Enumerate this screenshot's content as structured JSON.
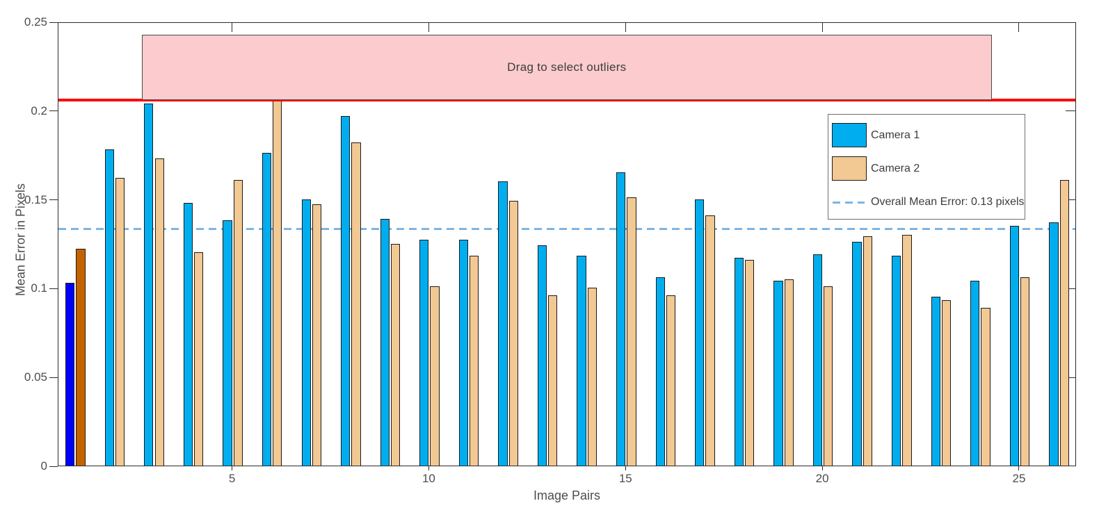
{
  "chart_data": {
    "type": "bar",
    "title": "",
    "xlabel": "Image Pairs",
    "ylabel": "Mean Error in Pixels",
    "categories": [
      1,
      2,
      3,
      4,
      5,
      6,
      7,
      8,
      9,
      10,
      11,
      12,
      13,
      14,
      15,
      16,
      17,
      18,
      19,
      20,
      21,
      22,
      23,
      24,
      25,
      26
    ],
    "series": [
      {
        "name": "Camera 1",
        "color": "#00AEEF",
        "values": [
          0.103,
          0.178,
          0.204,
          0.148,
          0.138,
          0.176,
          0.15,
          0.197,
          0.139,
          0.127,
          0.127,
          0.16,
          0.124,
          0.118,
          0.165,
          0.106,
          0.15,
          0.117,
          0.104,
          0.119,
          0.126,
          0.118,
          0.095,
          0.104,
          0.135,
          0.137
        ]
      },
      {
        "name": "Camera 2",
        "color": "#F2C893",
        "values": [
          0.122,
          0.162,
          0.173,
          0.12,
          0.161,
          0.206,
          0.147,
          0.182,
          0.125,
          0.101,
          0.118,
          0.149,
          0.096,
          0.1,
          0.151,
          0.096,
          0.141,
          0.116,
          0.105,
          0.101,
          0.129,
          0.13,
          0.093,
          0.089,
          0.106,
          0.161
        ]
      }
    ],
    "selected_pair": 1,
    "selected_colors": {
      "camera1": "#0000F5",
      "camera2": "#C56200"
    },
    "bar_edge_color": "#1a1a1a",
    "xticks": [
      5,
      10,
      15,
      20,
      25
    ],
    "yticks": [
      0,
      0.05,
      0.1,
      0.15,
      0.2,
      0.25
    ],
    "ytick_labels": [
      "0",
      "0.05",
      "0.1",
      "0.15",
      "0.2",
      "0.25"
    ],
    "xlim": [
      0.57,
      26.45
    ],
    "ylim": [
      0,
      0.25
    ],
    "grid": false,
    "legend_position": "upper-right",
    "mean_line": {
      "value": 0.134,
      "label": "Overall Mean Error: 0.13 pixels",
      "color": "#7CB5E3",
      "style": "dashed"
    },
    "threshold_line": {
      "value": 0.2066,
      "color": "#FF0000"
    },
    "selection_box": {
      "label": "Drag to select outliers",
      "x_range": [
        2.69,
        24.29
      ],
      "y_range": [
        0.2066,
        0.2434
      ],
      "fill": "#FBCBCD",
      "border": "#4a4a4a",
      "text_color": "#3c3c3c"
    },
    "legend": {
      "entries": [
        {
          "label": "Camera 1",
          "swatch": "#00AEEF"
        },
        {
          "label": "Camera 2",
          "swatch": "#F2C893"
        },
        {
          "label": "Overall Mean Error: 0.13 pixels",
          "line_color": "#7CB5E3"
        }
      ]
    }
  }
}
